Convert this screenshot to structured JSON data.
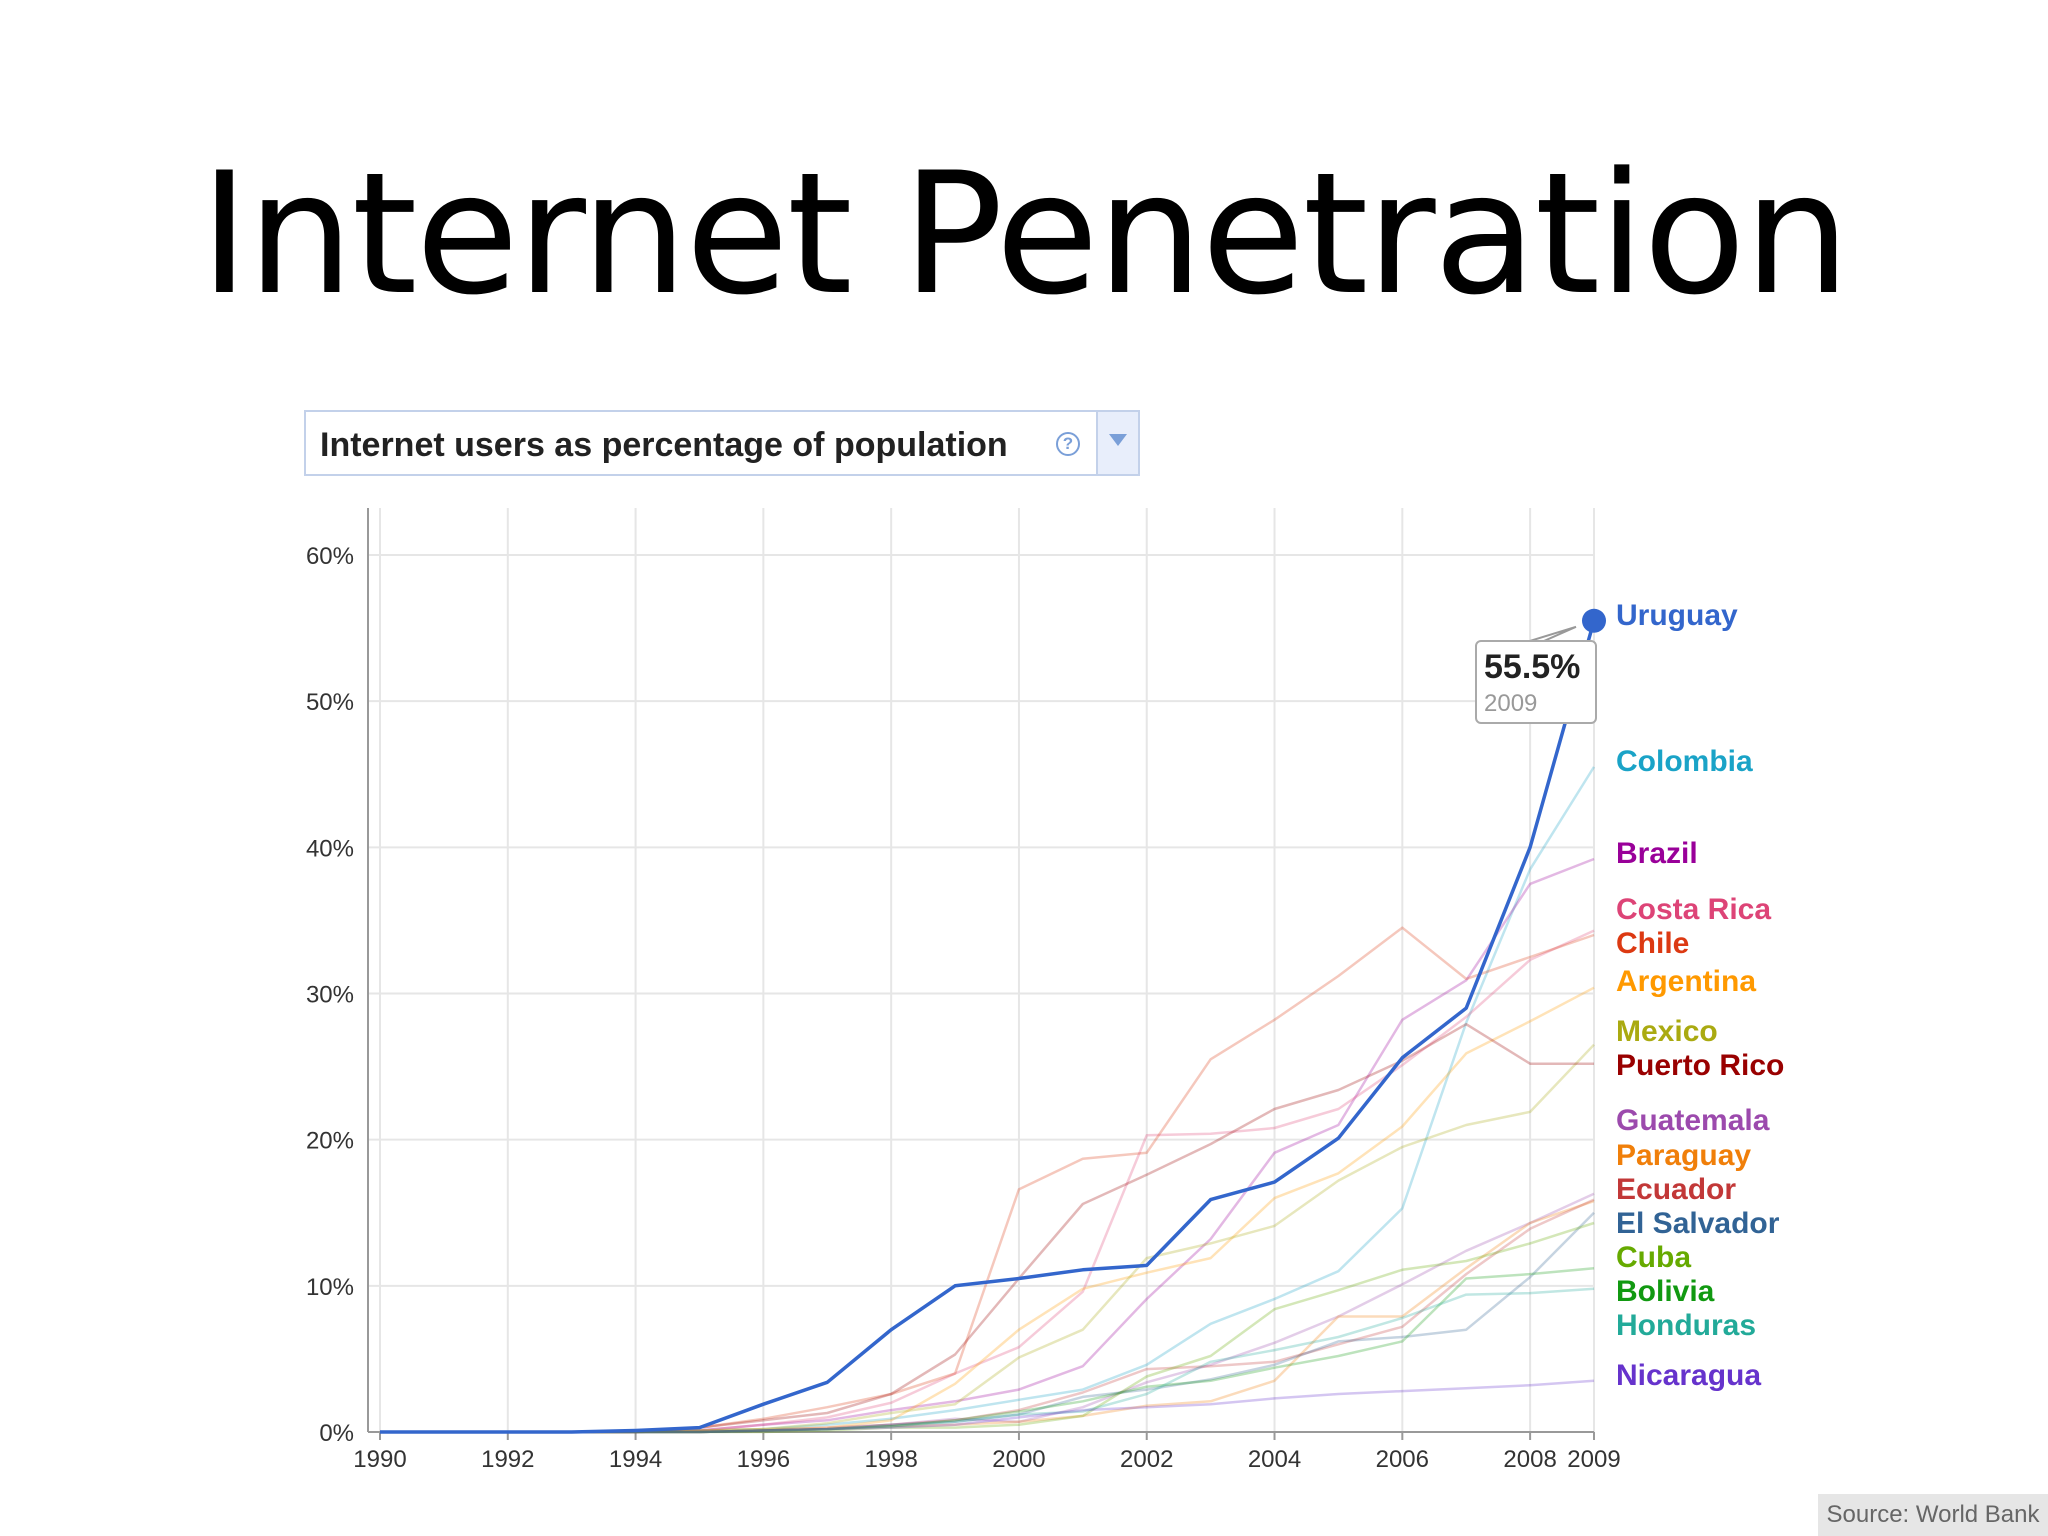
{
  "slide": {
    "title": "Internet Penetration",
    "metric_selector": "Internet users as percentage of population",
    "help_glyph": "?",
    "source": "Source: World Bank"
  },
  "chart_data": {
    "type": "line",
    "title": "Internet users as percentage of population",
    "xlabel": "",
    "ylabel": "",
    "xlim": [
      1990,
      2009
    ],
    "ylim": [
      0,
      60
    ],
    "x_ticks": [
      "1990",
      "1992",
      "1994",
      "1996",
      "1998",
      "2000",
      "2002",
      "2004",
      "2006",
      "2008",
      "2009"
    ],
    "y_ticks": [
      "0%",
      "10%",
      "20%",
      "30%",
      "40%",
      "50%",
      "60%"
    ],
    "grid": true,
    "legend": "right, labels at line ends",
    "x": [
      1990,
      1991,
      1992,
      1993,
      1994,
      1995,
      1996,
      1997,
      1998,
      1999,
      2000,
      2001,
      2002,
      2003,
      2004,
      2005,
      2006,
      2007,
      2008,
      2009
    ],
    "highlighted_series": "Uruguay",
    "tooltip": {
      "value": "55.5%",
      "year": "2009"
    },
    "series": [
      {
        "name": "Uruguay",
        "color": "#3366cc",
        "values": [
          0,
          0,
          0,
          0,
          0.1,
          0.3,
          1.9,
          3.4,
          7.0,
          10.0,
          10.5,
          11.1,
          11.4,
          15.9,
          17.1,
          20.1,
          25.6,
          29.0,
          40.0,
          55.5
        ]
      },
      {
        "name": "Colombia",
        "color": "#1aa3c7",
        "values": [
          0,
          0,
          0,
          0,
          0,
          0.1,
          0.2,
          0.5,
          0.9,
          1.5,
          2.2,
          2.9,
          4.6,
          7.4,
          9.1,
          11.0,
          15.3,
          28.0,
          38.5,
          45.5
        ]
      },
      {
        "name": "Brazil",
        "color": "#990099",
        "values": [
          0,
          0,
          0,
          0,
          0,
          0.1,
          0.5,
          0.8,
          1.5,
          2.1,
          2.9,
          4.5,
          9.1,
          13.2,
          19.1,
          21.0,
          28.2,
          30.9,
          37.5,
          39.2
        ]
      },
      {
        "name": "Costa Rica",
        "color": "#dd4477",
        "values": [
          0,
          0,
          0,
          0,
          0,
          0.1,
          0.5,
          1.0,
          2.0,
          4.0,
          5.8,
          9.6,
          20.3,
          20.4,
          20.8,
          22.1,
          25.1,
          28.4,
          32.3,
          34.3
        ]
      },
      {
        "name": "Chile",
        "color": "#dc3912",
        "values": [
          0,
          0,
          0,
          0,
          0.1,
          0.3,
          0.9,
          1.7,
          2.6,
          4.0,
          16.6,
          18.7,
          19.1,
          25.5,
          28.2,
          31.2,
          34.5,
          31.0,
          32.5,
          34.0
        ]
      },
      {
        "name": "Argentina",
        "color": "#ff9900",
        "values": [
          0,
          0,
          0,
          0,
          0,
          0.1,
          0.2,
          0.3,
          0.8,
          3.3,
          7.0,
          9.8,
          10.9,
          11.9,
          16.0,
          17.7,
          20.9,
          25.9,
          28.1,
          30.4
        ]
      },
      {
        "name": "Mexico",
        "color": "#aaaa11",
        "values": [
          0,
          0,
          0,
          0,
          0,
          0.1,
          0.2,
          0.6,
          1.3,
          1.9,
          5.1,
          7.0,
          11.9,
          12.9,
          14.1,
          17.2,
          19.5,
          21.0,
          21.9,
          26.5
        ]
      },
      {
        "name": "Puerto Rico",
        "color": "#990000",
        "values": [
          0,
          0,
          0,
          0,
          0,
          0.3,
          0.8,
          1.3,
          2.6,
          5.3,
          10.5,
          15.6,
          17.6,
          19.7,
          22.1,
          23.4,
          25.4,
          27.9,
          25.2,
          25.2
        ]
      },
      {
        "name": "Guatemala",
        "color": "#9c4aad",
        "values": [
          0,
          0,
          0,
          0,
          0,
          0,
          0.1,
          0.2,
          0.5,
          0.9,
          0.7,
          1.7,
          3.4,
          4.6,
          6.1,
          7.9,
          10.1,
          12.4,
          14.3,
          16.3
        ]
      },
      {
        "name": "Paraguay",
        "color": "#f07f0a",
        "values": [
          0,
          0,
          0,
          0,
          0,
          0,
          0.1,
          0.2,
          0.4,
          0.5,
          0.7,
          1.1,
          1.8,
          2.1,
          3.5,
          7.9,
          7.9,
          11.2,
          14.3,
          15.8
        ]
      },
      {
        "name": "Ecuador",
        "color": "#c23838",
        "values": [
          0,
          0,
          0,
          0,
          0,
          0,
          0.1,
          0.3,
          0.5,
          0.8,
          1.5,
          2.7,
          4.3,
          4.5,
          4.8,
          6.0,
          7.2,
          10.8,
          13.9,
          15.9
        ]
      },
      {
        "name": "El Salvador",
        "color": "#316395",
        "values": [
          0,
          0,
          0,
          0,
          0,
          0,
          0.1,
          0.2,
          0.5,
          0.7,
          1.2,
          2.4,
          2.9,
          3.6,
          4.6,
          6.2,
          6.5,
          7.0,
          10.6,
          15.0
        ]
      },
      {
        "name": "Cuba",
        "color": "#66aa00",
        "values": [
          0,
          0,
          0,
          0,
          0,
          0,
          0,
          0.1,
          0.3,
          0.3,
          0.5,
          1.1,
          3.8,
          5.2,
          8.4,
          9.7,
          11.1,
          11.7,
          12.9,
          14.3
        ]
      },
      {
        "name": "Bolivia",
        "color": "#119911",
        "values": [
          0,
          0,
          0,
          0,
          0,
          0,
          0.1,
          0.2,
          0.4,
          0.8,
          1.4,
          2.1,
          3.1,
          3.5,
          4.4,
          5.2,
          6.2,
          10.5,
          10.8,
          11.2
        ]
      },
      {
        "name": "Honduras",
        "color": "#22aa99",
        "values": [
          0,
          0,
          0,
          0,
          0,
          0,
          0.1,
          0.2,
          0.4,
          0.7,
          1.2,
          1.4,
          2.6,
          4.8,
          5.6,
          6.5,
          7.8,
          9.4,
          9.5,
          9.8
        ]
      },
      {
        "name": "Nicaragua",
        "color": "#6633cc",
        "values": [
          0,
          0,
          0,
          0,
          0,
          0,
          0.1,
          0.2,
          0.3,
          0.5,
          1.0,
          1.5,
          1.7,
          1.9,
          2.3,
          2.6,
          2.8,
          3.0,
          3.2,
          3.5
        ]
      }
    ]
  }
}
